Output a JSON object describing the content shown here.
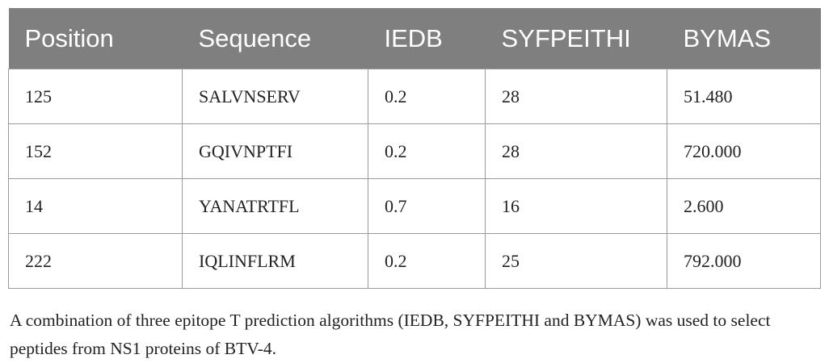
{
  "table": {
    "header": [
      "Position",
      "Sequence",
      "IEDB",
      "SYFPEITHI",
      "BYMAS"
    ],
    "rows": [
      [
        "125",
        "SALVNSERV",
        "0.2",
        "28",
        "51.480"
      ],
      [
        "152",
        "GQIVNPTFI",
        "0.2",
        "28",
        "720.000"
      ],
      [
        "14",
        "YANATRTFL",
        "0.7",
        "16",
        "2.600"
      ],
      [
        "222",
        "IQLINFLRM",
        "0.2",
        "25",
        "792.000"
      ]
    ],
    "footnote": "A combination of three epitope T prediction algorithms (IEDB, SYFPEITHI and BYMAS) was used to select peptides from NS1 proteins of BTV-4."
  }
}
